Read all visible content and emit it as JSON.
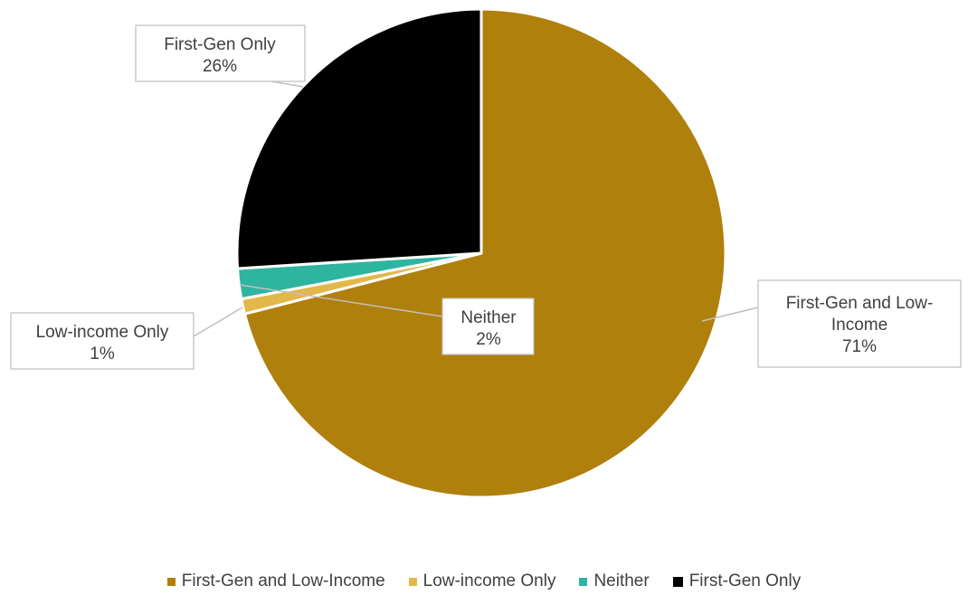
{
  "chart_data": {
    "type": "pie",
    "slices": [
      {
        "name": "First-Gen and Low-Income",
        "value": 71,
        "color": "#B0800D",
        "label_lines": [
          "First-Gen and Low-",
          "Income",
          "71%"
        ]
      },
      {
        "name": "Low-income Only",
        "value": 1,
        "color": "#E2B84B",
        "label_lines": [
          "Low-income Only",
          "1%"
        ]
      },
      {
        "name": "Neither",
        "value": 2,
        "color": "#2EB5A0",
        "label_lines": [
          "Neither",
          "2%"
        ]
      },
      {
        "name": "First-Gen Only",
        "value": 26,
        "color": "#000000",
        "label_lines": [
          "First-Gen Only",
          "26%"
        ]
      }
    ],
    "legend": {
      "position": "bottom",
      "items": [
        "First-Gen and Low-Income",
        "Low-income Only",
        "Neither",
        "First-Gen Only"
      ]
    }
  }
}
